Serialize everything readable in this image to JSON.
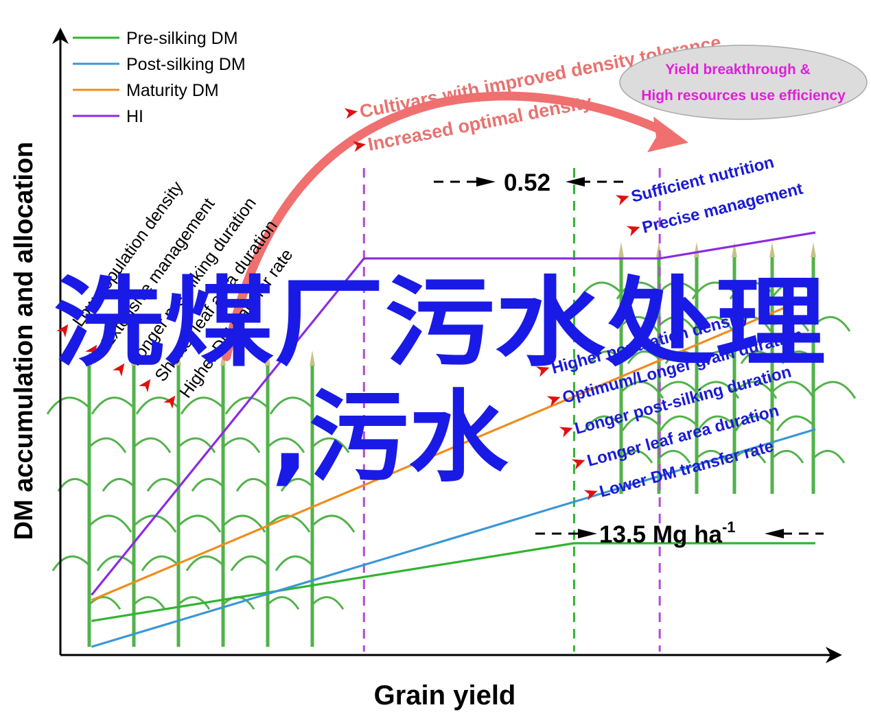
{
  "chart_data": {
    "type": "line",
    "title": "",
    "xlabel": "Grain yield",
    "ylabel": "DM accumulation and allocation",
    "grid": false,
    "legend_placement": "top-left",
    "x_range": [
      0,
      100
    ],
    "y_range": [
      0,
      100
    ],
    "series": [
      {
        "name": "Pre-silking DM",
        "color": "#2fb52f",
        "points": [
          [
            4,
            5
          ],
          [
            66,
            20
          ],
          [
            97,
            20
          ]
        ]
      },
      {
        "name": "Post-silking DM",
        "color": "#3a96d6",
        "points": [
          [
            4,
            0
          ],
          [
            97,
            42
          ]
        ]
      },
      {
        "name": "Maturity DM",
        "color": "#ef8c1e",
        "points": [
          [
            4,
            9
          ],
          [
            97,
            68
          ]
        ]
      },
      {
        "name": "HI",
        "color": "#8a2be2",
        "points": [
          [
            4,
            10
          ],
          [
            39,
            75
          ],
          [
            77,
            75
          ],
          [
            97,
            80
          ]
        ]
      }
    ],
    "guides": [
      {
        "color": "#b24ad6",
        "x": 39
      },
      {
        "color": "#2fb52f",
        "x": 66
      },
      {
        "color": "#b24ad6",
        "x": 77
      }
    ],
    "annotations": {
      "hi_gap": "0.52",
      "dm_gap_value": "13.5 Mg ha",
      "dm_gap_exponent": "-1"
    },
    "left_factors": [
      "Low population density",
      "Extensive management",
      "Longer pre-silking duration",
      "Shorter leaf area duration",
      "Higher DM transfer rate"
    ],
    "right_factors_top": [
      "Sufficient nutrition",
      "Precise management"
    ],
    "right_factors_bottom": [
      "Higher population density",
      "Optimum/Longer grain duration",
      "Longer  post-silking duration",
      "Longer leaf area duration",
      "Lower DM transfer rate"
    ],
    "arrow_labels": [
      "Cultivars with improved density tolerance",
      "Increased optimal density"
    ],
    "ellipse_lines": [
      "Yield breakthrough &",
      "High resources use efficiency"
    ]
  },
  "watermark": {
    "line1": "洗煤厂污水处理",
    "line2": ",污水"
  },
  "colors": {
    "factor_blue": "#1a1ad6",
    "arrow_red": "#f07070",
    "ellipse_fill": "#dcdcdc",
    "ellipse_text": "#e020d8",
    "watermark": "#1a1ae6",
    "plant_green": "#52b24a"
  },
  "icons": {
    "plants": "maize-plant-icon",
    "bullets": "red-arrowhead-icon"
  }
}
